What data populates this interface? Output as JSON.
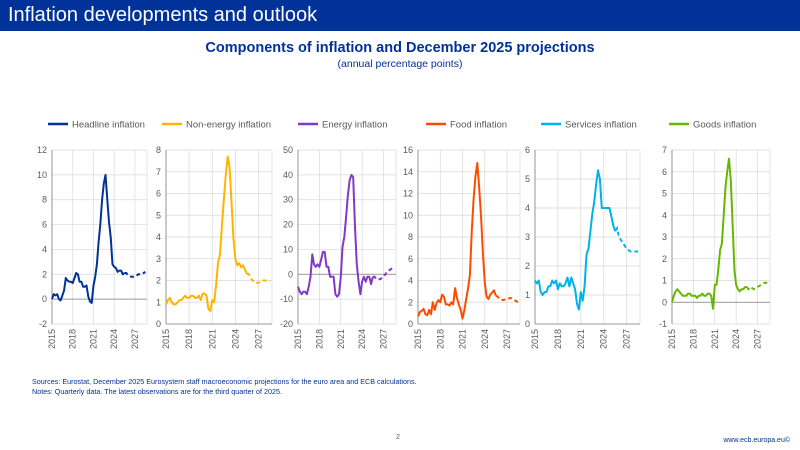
{
  "header": {
    "title": "Inflation developments and outlook"
  },
  "main": {
    "title": "Components of inflation and December 2025 projections",
    "subtitle": "(annual percentage points)"
  },
  "footer": {
    "sources": "Sources: Eurostat, December 2025 Eurosystem staff macroeconomic projections for the euro area and ECB calculations.",
    "notes": "Notes: Quarterly data. The latest observations are for the third quarter of 2025.",
    "page_number": "2",
    "website": "www.ecb.europa.eu©"
  },
  "chart_data": [
    {
      "type": "line",
      "title": "Headline inflation",
      "color": "#003299",
      "ylim": [
        -2,
        12
      ],
      "yticks": [
        -2,
        0,
        2,
        4,
        6,
        8,
        10,
        12
      ],
      "xticks": [
        "2015",
        "2018",
        "2021",
        "2024",
        "2027"
      ],
      "xlim": [
        2015,
        2028.75
      ],
      "grid": true,
      "actual": [
        [
          2015.0,
          0.0
        ],
        [
          2015.25,
          0.4
        ],
        [
          2015.5,
          0.3
        ],
        [
          2015.75,
          0.4
        ],
        [
          2016.0,
          0.0
        ],
        [
          2016.25,
          -0.1
        ],
        [
          2016.5,
          0.3
        ],
        [
          2016.75,
          0.7
        ],
        [
          2017.0,
          1.7
        ],
        [
          2017.25,
          1.5
        ],
        [
          2017.5,
          1.4
        ],
        [
          2017.75,
          1.4
        ],
        [
          2018.0,
          1.3
        ],
        [
          2018.25,
          1.7
        ],
        [
          2018.5,
          2.1
        ],
        [
          2018.75,
          2.0
        ],
        [
          2019.0,
          1.4
        ],
        [
          2019.25,
          1.4
        ],
        [
          2019.5,
          1.0
        ],
        [
          2019.75,
          1.0
        ],
        [
          2020.0,
          1.1
        ],
        [
          2020.25,
          0.2
        ],
        [
          2020.5,
          -0.2
        ],
        [
          2020.75,
          -0.3
        ],
        [
          2021.0,
          1.1
        ],
        [
          2021.25,
          1.8
        ],
        [
          2021.5,
          2.8
        ],
        [
          2021.75,
          4.6
        ],
        [
          2022.0,
          6.1
        ],
        [
          2022.25,
          8.0
        ],
        [
          2022.5,
          9.3
        ],
        [
          2022.75,
          10.0
        ],
        [
          2023.0,
          8.0
        ],
        [
          2023.25,
          6.2
        ],
        [
          2023.5,
          5.0
        ],
        [
          2023.75,
          2.8
        ],
        [
          2024.0,
          2.6
        ],
        [
          2024.25,
          2.5
        ],
        [
          2024.5,
          2.2
        ],
        [
          2024.75,
          2.3
        ],
        [
          2025.0,
          2.3
        ],
        [
          2025.25,
          2.0
        ],
        [
          2025.5,
          2.1
        ]
      ],
      "projection": [
        [
          2025.5,
          2.1
        ],
        [
          2025.75,
          2.1
        ],
        [
          2026.0,
          1.9
        ],
        [
          2026.5,
          1.8
        ],
        [
          2027.0,
          1.8
        ],
        [
          2027.5,
          2.0
        ],
        [
          2028.0,
          2.0
        ],
        [
          2028.5,
          2.2
        ]
      ]
    },
    {
      "type": "line",
      "title": "Non-energy inflation",
      "color": "#ffb400",
      "ylim": [
        0,
        8
      ],
      "yticks": [
        0,
        1,
        2,
        3,
        4,
        5,
        6,
        7,
        8
      ],
      "xticks": [
        "2015",
        "2018",
        "2021",
        "2024",
        "2027"
      ],
      "xlim": [
        2015,
        2028.75
      ],
      "grid": true,
      "actual": [
        [
          2015.0,
          0.9
        ],
        [
          2015.25,
          1.1
        ],
        [
          2015.5,
          1.2
        ],
        [
          2015.75,
          1.0
        ],
        [
          2016.0,
          0.9
        ],
        [
          2016.25,
          0.9
        ],
        [
          2016.5,
          1.0
        ],
        [
          2016.75,
          1.1
        ],
        [
          2017.0,
          1.1
        ],
        [
          2017.25,
          1.2
        ],
        [
          2017.5,
          1.3
        ],
        [
          2017.75,
          1.2
        ],
        [
          2018.0,
          1.2
        ],
        [
          2018.25,
          1.3
        ],
        [
          2018.5,
          1.3
        ],
        [
          2018.75,
          1.2
        ],
        [
          2019.0,
          1.2
        ],
        [
          2019.25,
          1.3
        ],
        [
          2019.5,
          1.1
        ],
        [
          2019.75,
          1.4
        ],
        [
          2020.0,
          1.4
        ],
        [
          2020.25,
          1.3
        ],
        [
          2020.5,
          0.7
        ],
        [
          2020.75,
          0.6
        ],
        [
          2021.0,
          1.1
        ],
        [
          2021.25,
          1.0
        ],
        [
          2021.5,
          1.8
        ],
        [
          2021.75,
          2.8
        ],
        [
          2022.0,
          3.2
        ],
        [
          2022.25,
          4.5
        ],
        [
          2022.5,
          5.7
        ],
        [
          2022.75,
          6.8
        ],
        [
          2023.0,
          7.7
        ],
        [
          2023.25,
          7.2
        ],
        [
          2023.5,
          5.6
        ],
        [
          2023.75,
          3.9
        ],
        [
          2024.0,
          3.0
        ],
        [
          2024.25,
          2.7
        ],
        [
          2024.5,
          2.8
        ],
        [
          2024.75,
          2.6
        ],
        [
          2025.0,
          2.7
        ],
        [
          2025.25,
          2.5
        ],
        [
          2025.5,
          2.3
        ]
      ],
      "projection": [
        [
          2025.5,
          2.3
        ],
        [
          2025.75,
          2.3
        ],
        [
          2026.0,
          2.1
        ],
        [
          2026.5,
          1.9
        ],
        [
          2027.0,
          1.9
        ],
        [
          2027.5,
          2.0
        ],
        [
          2028.0,
          2.0
        ],
        [
          2028.5,
          2.0
        ]
      ]
    },
    {
      "type": "line",
      "title": "Energy inflation",
      "color": "#8139c6",
      "ylim": [
        -20,
        50
      ],
      "yticks": [
        -20,
        -10,
        0,
        10,
        20,
        30,
        40,
        50
      ],
      "xticks": [
        "2015",
        "2018",
        "2021",
        "2024",
        "2027"
      ],
      "xlim": [
        2015,
        2028.75
      ],
      "grid": true,
      "actual": [
        [
          2015.0,
          -5
        ],
        [
          2015.25,
          -7
        ],
        [
          2015.5,
          -8
        ],
        [
          2015.75,
          -7
        ],
        [
          2016.0,
          -7
        ],
        [
          2016.25,
          -8
        ],
        [
          2016.5,
          -5
        ],
        [
          2016.75,
          -1
        ],
        [
          2017.0,
          8
        ],
        [
          2017.25,
          4
        ],
        [
          2017.5,
          3
        ],
        [
          2017.75,
          4
        ],
        [
          2018.0,
          3
        ],
        [
          2018.25,
          6
        ],
        [
          2018.5,
          9
        ],
        [
          2018.75,
          9
        ],
        [
          2019.0,
          3
        ],
        [
          2019.25,
          3
        ],
        [
          2019.5,
          -1
        ],
        [
          2019.75,
          -1
        ],
        [
          2020.0,
          -1
        ],
        [
          2020.25,
          -8
        ],
        [
          2020.5,
          -9
        ],
        [
          2020.75,
          -8
        ],
        [
          2021.0,
          -1
        ],
        [
          2021.25,
          11
        ],
        [
          2021.5,
          15
        ],
        [
          2021.75,
          23
        ],
        [
          2022.0,
          32
        ],
        [
          2022.25,
          38
        ],
        [
          2022.5,
          40
        ],
        [
          2022.75,
          39
        ],
        [
          2023.0,
          19
        ],
        [
          2023.25,
          4
        ],
        [
          2023.5,
          -3
        ],
        [
          2023.75,
          -8
        ],
        [
          2024.0,
          -3
        ],
        [
          2024.25,
          -1
        ],
        [
          2024.5,
          -3
        ],
        [
          2024.75,
          -1
        ],
        [
          2025.0,
          -1
        ],
        [
          2025.25,
          -4
        ],
        [
          2025.5,
          -1
        ]
      ],
      "projection": [
        [
          2025.5,
          -1
        ],
        [
          2025.75,
          -1
        ],
        [
          2026.0,
          -2
        ],
        [
          2026.5,
          -2
        ],
        [
          2027.0,
          -1
        ],
        [
          2027.5,
          1
        ],
        [
          2028.0,
          2
        ],
        [
          2028.5,
          3
        ]
      ]
    },
    {
      "type": "line",
      "title": "Food inflation",
      "color": "#ff4b00",
      "ylim": [
        0,
        16
      ],
      "yticks": [
        0,
        2,
        4,
        6,
        8,
        10,
        12,
        14,
        16
      ],
      "xticks": [
        "2015",
        "2018",
        "2021",
        "2024",
        "2027"
      ],
      "xlim": [
        2015,
        2028.75
      ],
      "grid": true,
      "actual": [
        [
          2015.0,
          0.7
        ],
        [
          2015.25,
          1.1
        ],
        [
          2015.5,
          1.2
        ],
        [
          2015.75,
          1.4
        ],
        [
          2016.0,
          0.9
        ],
        [
          2016.25,
          0.8
        ],
        [
          2016.5,
          1.3
        ],
        [
          2016.75,
          0.9
        ],
        [
          2017.0,
          2.0
        ],
        [
          2017.25,
          1.3
        ],
        [
          2017.5,
          1.9
        ],
        [
          2017.75,
          2.2
        ],
        [
          2018.0,
          2.0
        ],
        [
          2018.25,
          2.7
        ],
        [
          2018.5,
          2.5
        ],
        [
          2018.75,
          1.8
        ],
        [
          2019.0,
          1.8
        ],
        [
          2019.25,
          1.7
        ],
        [
          2019.5,
          2.0
        ],
        [
          2019.75,
          1.8
        ],
        [
          2020.0,
          3.3
        ],
        [
          2020.25,
          2.4
        ],
        [
          2020.5,
          1.8
        ],
        [
          2020.75,
          1.3
        ],
        [
          2021.0,
          0.5
        ],
        [
          2021.25,
          1.3
        ],
        [
          2021.5,
          2.3
        ],
        [
          2021.75,
          3.3
        ],
        [
          2022.0,
          4.5
        ],
        [
          2022.25,
          8.6
        ],
        [
          2022.5,
          11.5
        ],
        [
          2022.75,
          13.6
        ],
        [
          2023.0,
          14.8
        ],
        [
          2023.25,
          12.5
        ],
        [
          2023.5,
          9.8
        ],
        [
          2023.75,
          6.5
        ],
        [
          2024.0,
          3.8
        ],
        [
          2024.25,
          2.5
        ],
        [
          2024.5,
          2.3
        ],
        [
          2024.75,
          2.7
        ],
        [
          2025.0,
          2.9
        ],
        [
          2025.25,
          3.1
        ],
        [
          2025.5,
          2.6
        ]
      ],
      "projection": [
        [
          2025.5,
          2.6
        ],
        [
          2025.75,
          2.5
        ],
        [
          2026.0,
          2.3
        ],
        [
          2026.5,
          2.2
        ],
        [
          2027.0,
          2.3
        ],
        [
          2027.5,
          2.4
        ],
        [
          2028.0,
          2.2
        ],
        [
          2028.5,
          2.0
        ]
      ]
    },
    {
      "type": "line",
      "title": "Services inflation",
      "color": "#00b1ea",
      "ylim": [
        0,
        6
      ],
      "yticks": [
        0,
        1,
        2,
        3,
        4,
        5,
        6
      ],
      "xticks": [
        "2015",
        "2018",
        "2021",
        "2024",
        "2027"
      ],
      "xlim": [
        2015,
        2028.75
      ],
      "grid": true,
      "actual": [
        [
          2015.0,
          1.5
        ],
        [
          2015.25,
          1.4
        ],
        [
          2015.5,
          1.5
        ],
        [
          2015.75,
          1.1
        ],
        [
          2016.0,
          1.0
        ],
        [
          2016.25,
          1.1
        ],
        [
          2016.5,
          1.1
        ],
        [
          2016.75,
          1.3
        ],
        [
          2017.0,
          1.3
        ],
        [
          2017.25,
          1.5
        ],
        [
          2017.5,
          1.4
        ],
        [
          2017.75,
          1.5
        ],
        [
          2018.0,
          1.2
        ],
        [
          2018.25,
          1.4
        ],
        [
          2018.5,
          1.3
        ],
        [
          2018.75,
          1.3
        ],
        [
          2019.0,
          1.4
        ],
        [
          2019.25,
          1.6
        ],
        [
          2019.5,
          1.3
        ],
        [
          2019.75,
          1.6
        ],
        [
          2020.0,
          1.4
        ],
        [
          2020.25,
          1.2
        ],
        [
          2020.5,
          0.7
        ],
        [
          2020.75,
          0.5
        ],
        [
          2021.0,
          1.1
        ],
        [
          2021.25,
          0.8
        ],
        [
          2021.5,
          1.3
        ],
        [
          2021.75,
          2.4
        ],
        [
          2022.0,
          2.6
        ],
        [
          2022.25,
          3.2
        ],
        [
          2022.5,
          3.8
        ],
        [
          2022.75,
          4.2
        ],
        [
          2023.0,
          4.8
        ],
        [
          2023.25,
          5.3
        ],
        [
          2023.5,
          5.0
        ],
        [
          2023.75,
          4.0
        ],
        [
          2024.0,
          4.0
        ],
        [
          2024.25,
          4.0
        ],
        [
          2024.5,
          4.0
        ],
        [
          2024.75,
          4.0
        ],
        [
          2025.0,
          3.7
        ],
        [
          2025.25,
          3.4
        ],
        [
          2025.5,
          3.2
        ]
      ],
      "projection": [
        [
          2025.5,
          3.2
        ],
        [
          2025.75,
          3.3
        ],
        [
          2026.0,
          3.0
        ],
        [
          2026.5,
          2.8
        ],
        [
          2027.0,
          2.6
        ],
        [
          2027.5,
          2.5
        ],
        [
          2028.0,
          2.5
        ],
        [
          2028.5,
          2.5
        ]
      ]
    },
    {
      "type": "line",
      "title": "Goods inflation",
      "color": "#65b800",
      "ylim": [
        -1,
        7
      ],
      "yticks": [
        -1,
        0,
        1,
        2,
        3,
        4,
        5,
        6,
        7
      ],
      "xticks": [
        "2015",
        "2018",
        "2021",
        "2024",
        "2027"
      ],
      "xlim": [
        2015,
        2028.75
      ],
      "grid": true,
      "actual": [
        [
          2015.0,
          0.0
        ],
        [
          2015.25,
          0.3
        ],
        [
          2015.5,
          0.5
        ],
        [
          2015.75,
          0.6
        ],
        [
          2016.0,
          0.5
        ],
        [
          2016.25,
          0.4
        ],
        [
          2016.5,
          0.3
        ],
        [
          2016.75,
          0.3
        ],
        [
          2017.0,
          0.3
        ],
        [
          2017.25,
          0.4
        ],
        [
          2017.5,
          0.4
        ],
        [
          2017.75,
          0.3
        ],
        [
          2018.0,
          0.3
        ],
        [
          2018.25,
          0.3
        ],
        [
          2018.5,
          0.2
        ],
        [
          2018.75,
          0.3
        ],
        [
          2019.0,
          0.3
        ],
        [
          2019.25,
          0.4
        ],
        [
          2019.5,
          0.3
        ],
        [
          2019.75,
          0.3
        ],
        [
          2020.0,
          0.4
        ],
        [
          2020.25,
          0.4
        ],
        [
          2020.5,
          0.3
        ],
        [
          2020.75,
          -0.3
        ],
        [
          2021.0,
          0.8
        ],
        [
          2021.25,
          0.8
        ],
        [
          2021.5,
          1.5
        ],
        [
          2021.75,
          2.4
        ],
        [
          2022.0,
          2.7
        ],
        [
          2022.25,
          4.0
        ],
        [
          2022.5,
          5.3
        ],
        [
          2022.75,
          6.0
        ],
        [
          2023.0,
          6.6
        ],
        [
          2023.25,
          5.6
        ],
        [
          2023.5,
          3.6
        ],
        [
          2023.75,
          1.5
        ],
        [
          2024.0,
          0.8
        ],
        [
          2024.25,
          0.6
        ],
        [
          2024.5,
          0.5
        ],
        [
          2024.75,
          0.6
        ],
        [
          2025.0,
          0.6
        ],
        [
          2025.25,
          0.7
        ],
        [
          2025.5,
          0.7
        ]
      ],
      "projection": [
        [
          2025.5,
          0.7
        ],
        [
          2025.75,
          0.6
        ],
        [
          2026.0,
          0.7
        ],
        [
          2026.5,
          0.6
        ],
        [
          2027.0,
          0.7
        ],
        [
          2027.5,
          0.8
        ],
        [
          2028.0,
          0.9
        ],
        [
          2028.5,
          0.9
        ]
      ]
    }
  ]
}
